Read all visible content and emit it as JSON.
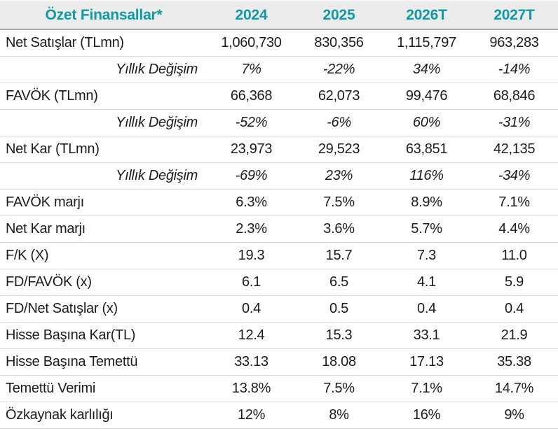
{
  "colors": {
    "accent": "#0f9ba3",
    "header_bg": "#ebebeb",
    "header_border": "#aaaaaa",
    "row_border": "#dcdcdc",
    "text": "#1c1c1c"
  },
  "table": {
    "title": "Özet Finansallar*",
    "columns": [
      "2024",
      "2025",
      "2026T",
      "2027T"
    ],
    "rows": [
      {
        "label": "Net Satışlar (TLmn)",
        "style": "normal",
        "values": [
          "1,060,730",
          "830,356",
          "1,115,797",
          "963,283"
        ]
      },
      {
        "label": "Yıllık Değişim",
        "style": "italic",
        "values": [
          "7%",
          "-22%",
          "34%",
          "-14%"
        ]
      },
      {
        "label": "FAVÖK (TLmn)",
        "style": "normal",
        "values": [
          "66,368",
          "62,073",
          "99,476",
          "68,846"
        ]
      },
      {
        "label": "Yıllık Değişim",
        "style": "italic",
        "values": [
          "-52%",
          "-6%",
          "60%",
          "-31%"
        ]
      },
      {
        "label": "Net Kar (TLmn)",
        "style": "normal",
        "values": [
          "23,973",
          "29,523",
          "63,851",
          "42,135"
        ]
      },
      {
        "label": "Yıllık Değişim",
        "style": "italic",
        "values": [
          "-69%",
          "23%",
          "116%",
          "-34%"
        ]
      },
      {
        "label": "FAVÖK marjı",
        "style": "normal",
        "values": [
          "6.3%",
          "7.5%",
          "8.9%",
          "7.1%"
        ]
      },
      {
        "label": "Net Kar marjı",
        "style": "normal",
        "values": [
          "2.3%",
          "3.6%",
          "5.7%",
          "4.4%"
        ]
      },
      {
        "label": "F/K (X)",
        "style": "normal",
        "values": [
          "19.3",
          "15.7",
          "7.3",
          "11.0"
        ]
      },
      {
        "label": "FD/FAVÖK (x)",
        "style": "normal",
        "values": [
          "6.1",
          "6.5",
          "4.1",
          "5.9"
        ]
      },
      {
        "label": "FD/Net Satışlar (x)",
        "style": "normal",
        "values": [
          "0.4",
          "0.5",
          "0.4",
          "0.4"
        ]
      },
      {
        "label": "Hisse Başına Kar(TL)",
        "style": "normal",
        "values": [
          "12.4",
          "15.3",
          "33.1",
          "21.9"
        ]
      },
      {
        "label": "Hisse Başına Temettü",
        "style": "normal",
        "values": [
          "33.13",
          "18.08",
          "17.13",
          "35.38"
        ]
      },
      {
        "label": "Temettü Verimi",
        "style": "normal",
        "values": [
          "13.8%",
          "7.5%",
          "7.1%",
          "14.7%"
        ]
      },
      {
        "label": "Özkaynak karlılığı",
        "style": "normal",
        "values": [
          "12%",
          "8%",
          "16%",
          "9%"
        ]
      }
    ]
  }
}
